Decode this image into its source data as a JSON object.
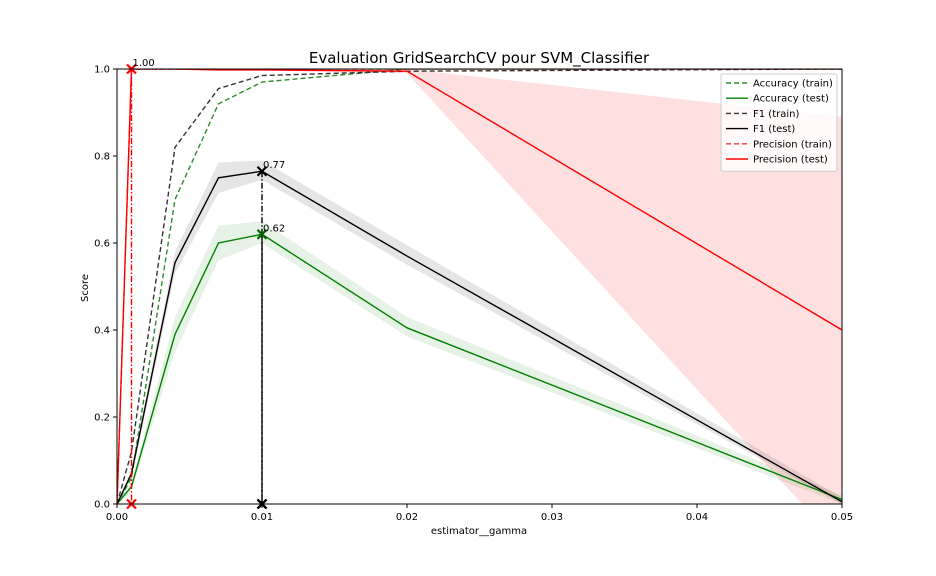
{
  "chart_data": {
    "type": "line",
    "title": "Evaluation GridSearchCV pour SVM_Classifier",
    "xlabel": "estimator__gamma",
    "ylabel": "Score",
    "xlim": [
      0,
      0.05
    ],
    "ylim": [
      0,
      1.0
    ],
    "x_ticks": [
      0,
      0.01,
      0.02,
      0.03,
      0.04,
      0.05
    ],
    "x_tick_labels": [
      "0.00",
      "0.01",
      "0.02",
      "0.03",
      "0.04",
      "0.05"
    ],
    "y_ticks": [
      0,
      0.2,
      0.4,
      0.6,
      0.8,
      1.0
    ],
    "y_tick_labels": [
      "0.0",
      "0.2",
      "0.4",
      "0.6",
      "0.8",
      "1.0"
    ],
    "grid": false,
    "legend_position": "top-right",
    "x": [
      0,
      0.001,
      0.004,
      0.007,
      0.01,
      0.02,
      0.05
    ],
    "series": [
      {
        "name": "Accuracy (train)",
        "color": "#2e8b2e",
        "dash": true,
        "values": [
          0.0,
          0.06,
          0.7,
          0.92,
          0.97,
          1.0,
          1.0
        ]
      },
      {
        "name": "Accuracy (test)",
        "color": "#008000",
        "dash": false,
        "values": [
          0.0,
          0.04,
          0.39,
          0.6,
          0.62,
          0.405,
          0.01
        ],
        "band_low": [
          0.0,
          0.03,
          0.35,
          0.56,
          0.6,
          0.385,
          0.0
        ],
        "band_high": [
          0.0,
          0.05,
          0.43,
          0.64,
          0.65,
          0.43,
          0.02
        ]
      },
      {
        "name": "F1 (train)",
        "color": "#333333",
        "dash": true,
        "values": [
          0.0,
          0.12,
          0.82,
          0.955,
          0.985,
          0.995,
          1.0
        ]
      },
      {
        "name": "F1 (test)",
        "color": "#000000",
        "dash": false,
        "values": [
          0.0,
          0.07,
          0.555,
          0.75,
          0.765,
          0.57,
          0.005
        ],
        "band_low": [
          0.0,
          0.06,
          0.53,
          0.715,
          0.745,
          0.55,
          0.0
        ],
        "band_high": [
          0.0,
          0.08,
          0.58,
          0.785,
          0.79,
          0.595,
          0.015
        ]
      },
      {
        "name": "Precision (train)",
        "color": "#ff3333",
        "dash": true,
        "values": [
          0.0,
          1.0,
          1.0,
          1.0,
          1.0,
          1.0,
          1.0
        ]
      },
      {
        "name": "Precision (test)",
        "color": "#ff0000",
        "dash": false,
        "values": [
          0.0,
          1.0,
          1.0,
          0.998,
          0.998,
          0.995,
          0.4
        ],
        "band_low": [
          0.0,
          1.0,
          1.0,
          0.996,
          0.996,
          0.99,
          -0.1
        ],
        "band_high": [
          0.0,
          1.0,
          1.0,
          1.0,
          1.0,
          1.0,
          0.89
        ]
      }
    ],
    "best_markers": [
      {
        "series": "Precision (test)",
        "x": 0.001,
        "y": 1.0,
        "label": "1.00",
        "color": "#ff0000"
      },
      {
        "series": "F1 (test)",
        "x": 0.01,
        "y": 0.765,
        "label": "0.77",
        "color": "#000000"
      },
      {
        "series": "Accuracy (test)",
        "x": 0.01,
        "y": 0.62,
        "label": "0.62",
        "color": "#006400"
      }
    ]
  }
}
